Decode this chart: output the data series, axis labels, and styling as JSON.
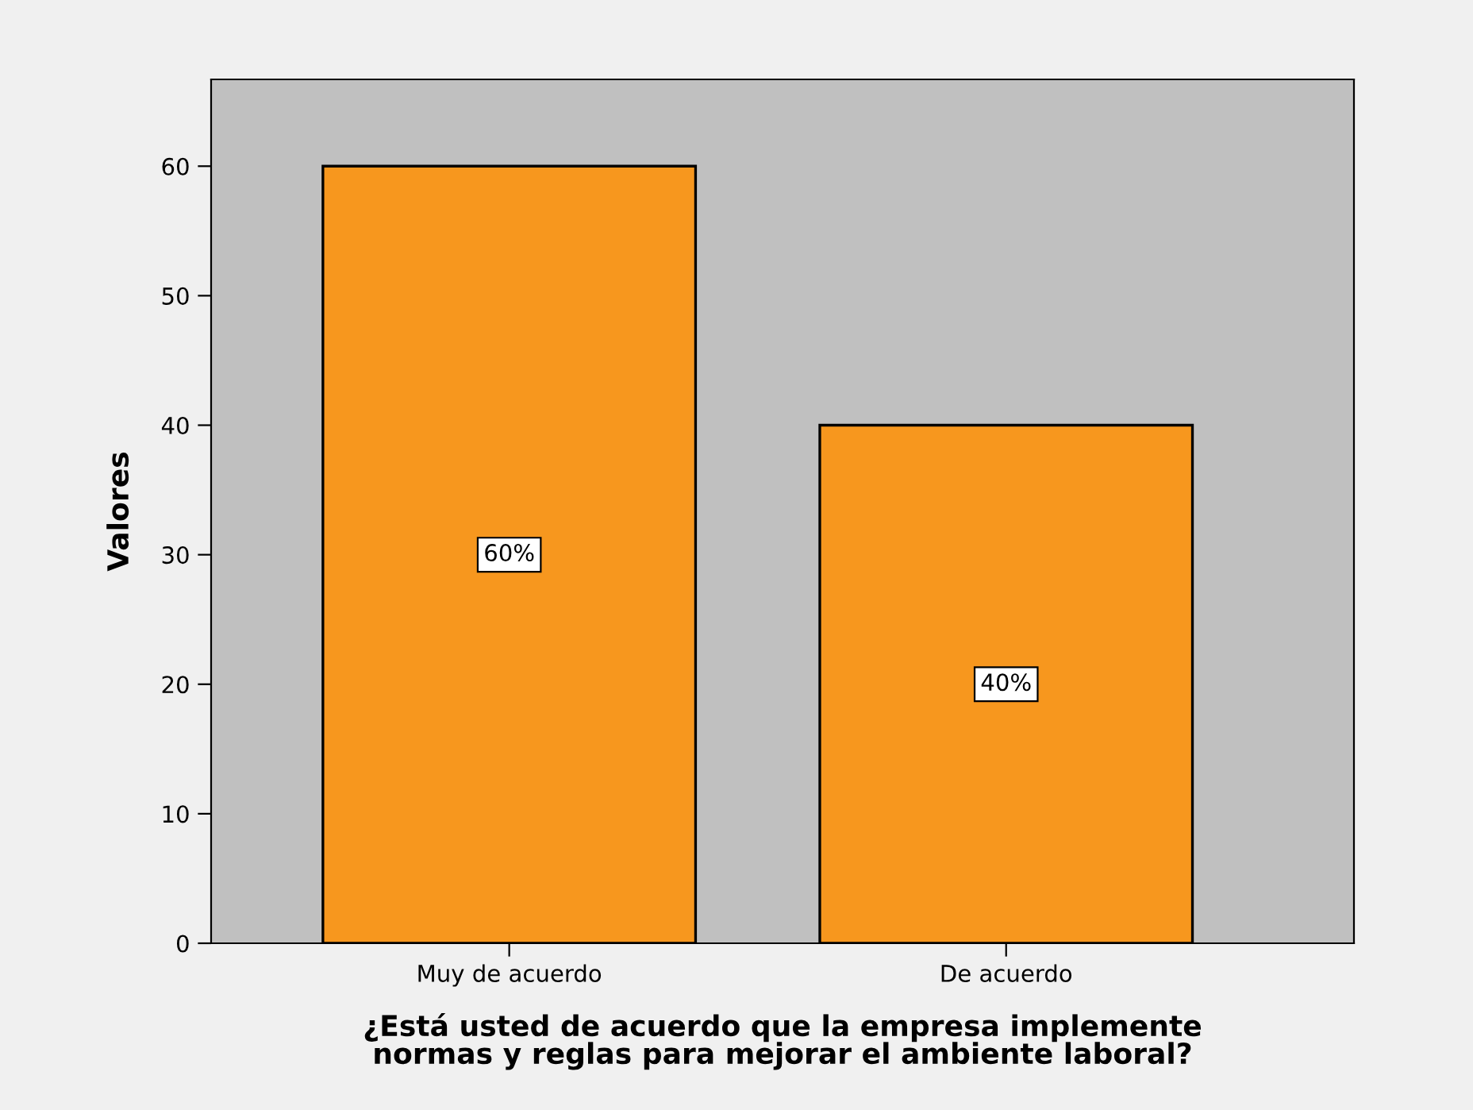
{
  "chart_data": {
    "type": "bar",
    "xlabel": "¿Está usted de acuerdo que la empresa implemente\nnormas y reglas para mejorar el ambiente laboral?",
    "ylabel": "Valores",
    "categories": [
      "Muy de acuerdo",
      "De acuerdo"
    ],
    "values": [
      60,
      40
    ],
    "value_labels": [
      "60%",
      "40%"
    ],
    "color": "#f7971e",
    "ylim": [
      0,
      66.7
    ],
    "yticks": [
      0,
      10,
      20,
      30,
      40,
      50,
      60
    ],
    "grid": false,
    "legend": false
  }
}
